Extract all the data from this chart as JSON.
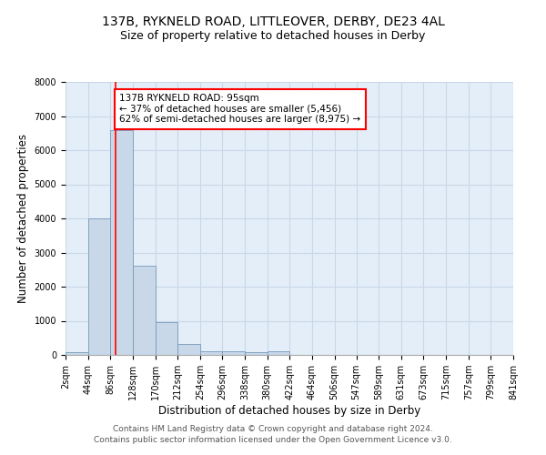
{
  "title1": "137B, RYKNELD ROAD, LITTLEOVER, DERBY, DE23 4AL",
  "title2": "Size of property relative to detached houses in Derby",
  "xlabel": "Distribution of detached houses by size in Derby",
  "ylabel": "Number of detached properties",
  "bar_color": "#c8d8e8",
  "bar_edge_color": "#7799bb",
  "bar_edge_width": 0.6,
  "grid_color": "#c8d8e8",
  "bg_color": "#e4eef8",
  "property_line_x": 95,
  "property_line_color": "red",
  "annotation_text": "137B RYKNELD ROAD: 95sqm\n← 37% of detached houses are smaller (5,456)\n62% of semi-detached houses are larger (8,975) →",
  "annotation_box_color": "white",
  "annotation_border_color": "red",
  "bin_edges": [
    2,
    44,
    86,
    128,
    170,
    212,
    254,
    296,
    338,
    380,
    422,
    464,
    506,
    547,
    589,
    631,
    673,
    715,
    757,
    799,
    841
  ],
  "bin_heights": [
    80,
    4000,
    6600,
    2620,
    960,
    310,
    120,
    100,
    80,
    100,
    0,
    0,
    0,
    0,
    0,
    0,
    0,
    0,
    0,
    0
  ],
  "xlim": [
    2,
    841
  ],
  "ylim": [
    0,
    8000
  ],
  "yticks": [
    0,
    1000,
    2000,
    3000,
    4000,
    5000,
    6000,
    7000,
    8000
  ],
  "xtick_labels": [
    "2sqm",
    "44sqm",
    "86sqm",
    "128sqm",
    "170sqm",
    "212sqm",
    "254sqm",
    "296sqm",
    "338sqm",
    "380sqm",
    "422sqm",
    "464sqm",
    "506sqm",
    "547sqm",
    "589sqm",
    "631sqm",
    "673sqm",
    "715sqm",
    "757sqm",
    "799sqm",
    "841sqm"
  ],
  "footer1": "Contains HM Land Registry data © Crown copyright and database right 2024.",
  "footer2": "Contains public sector information licensed under the Open Government Licence v3.0.",
  "title1_fontsize": 10,
  "title2_fontsize": 9,
  "xlabel_fontsize": 8.5,
  "ylabel_fontsize": 8.5,
  "tick_fontsize": 7,
  "footer_fontsize": 6.5,
  "annot_fontsize": 7.5
}
